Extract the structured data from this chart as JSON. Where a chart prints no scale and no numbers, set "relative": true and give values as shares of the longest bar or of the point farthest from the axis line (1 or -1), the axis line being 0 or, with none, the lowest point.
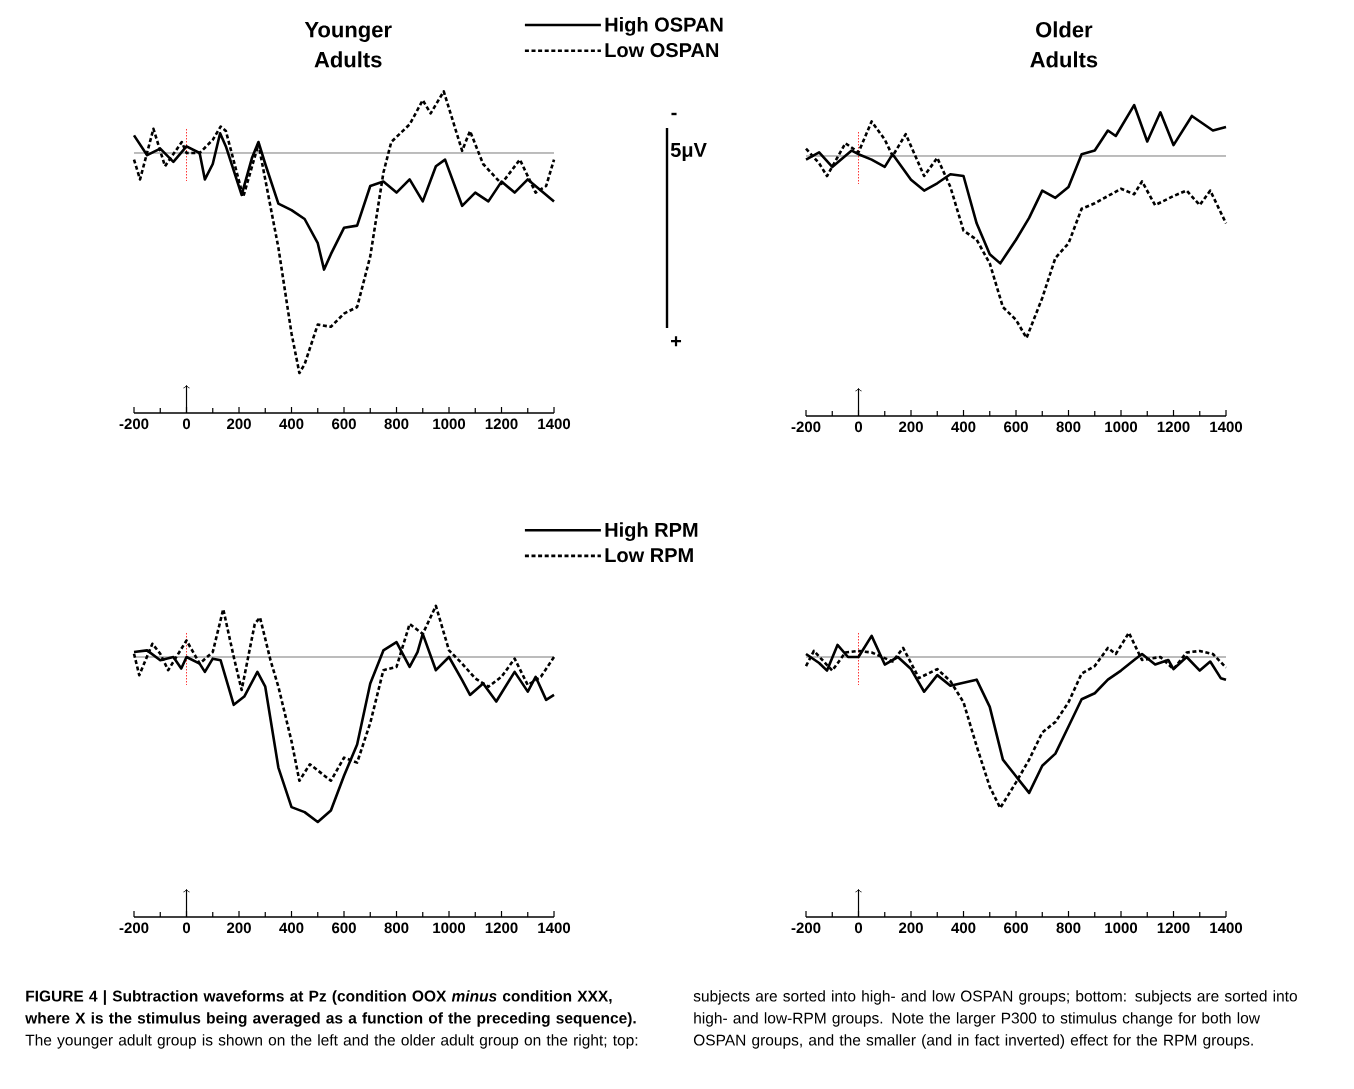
{
  "chart_data": [
    {
      "type": "line",
      "title": "Younger Adults",
      "relative": true,
      "xlim": [
        -200,
        1400
      ],
      "xticks": [
        -200,
        0,
        200,
        400,
        600,
        800,
        1000,
        1200,
        1400
      ],
      "legend": "top right",
      "ref_lines": [
        {
          "axis": "x",
          "value": 0,
          "color": "#ff0000",
          "line_style": "dotted"
        }
      ],
      "series": [
        {
          "name": "High OSPAN",
          "color": "#000000",
          "line_style": "solid",
          "x": [
            -200,
            -150,
            -100,
            -50,
            0,
            50,
            70,
            100,
            128,
            150,
            210,
            250,
            274,
            300,
            350,
            400,
            450,
            500,
            524,
            550,
            600,
            650,
            700,
            750,
            800,
            850,
            900,
            950,
            985,
            1050,
            1100,
            1150,
            1200,
            1250,
            1300,
            1350,
            1400
          ],
          "values": [
            0.08,
            -0.01,
            0.02,
            -0.04,
            0.03,
            0.0,
            -0.12,
            -0.05,
            0.09,
            0.03,
            -0.19,
            -0.02,
            0.05,
            -0.05,
            -0.23,
            -0.26,
            -0.3,
            -0.41,
            -0.53,
            -0.46,
            -0.34,
            -0.33,
            -0.15,
            -0.13,
            -0.18,
            -0.12,
            -0.22,
            -0.06,
            -0.03,
            -0.24,
            -0.18,
            -0.22,
            -0.13,
            -0.18,
            -0.12,
            -0.17,
            -0.22
          ]
        },
        {
          "name": "Low OSPAN",
          "color": "#000000",
          "line_style": "dashed",
          "x": [
            -200,
            -177,
            -126,
            -82,
            -18,
            0,
            50,
            100,
            130,
            150,
            216,
            274,
            300,
            350,
            400,
            430,
            450,
            500,
            550,
            600,
            650,
            700,
            750,
            780,
            850,
            900,
            930,
            980,
            1050,
            1080,
            1130,
            1200,
            1270,
            1330,
            1370,
            1400
          ],
          "values": [
            -0.03,
            -0.12,
            0.11,
            -0.06,
            0.05,
            0.0,
            0.0,
            0.06,
            0.12,
            0.1,
            -0.2,
            0.04,
            -0.12,
            -0.43,
            -0.82,
            -1.0,
            -0.96,
            -0.78,
            -0.79,
            -0.73,
            -0.7,
            -0.47,
            -0.09,
            0.05,
            0.13,
            0.24,
            0.18,
            0.28,
            0.01,
            0.1,
            -0.05,
            -0.14,
            -0.03,
            -0.18,
            -0.15,
            -0.03
          ]
        }
      ]
    },
    {
      "type": "line",
      "title": "Older Adults",
      "relative": true,
      "xlim": [
        -200,
        1400
      ],
      "xticks": [
        -200,
        0,
        200,
        400,
        600,
        800,
        1000,
        1200,
        1400
      ],
      "annotations": [
        "-",
        "5μV",
        "+"
      ],
      "ref_lines": [
        {
          "axis": "x",
          "value": 0,
          "color": "#ff0000",
          "line_style": "dotted"
        }
      ],
      "series": [
        {
          "color": "#000000",
          "line_style": "solid",
          "x": [
            -200,
            -150,
            -100,
            -26,
            0,
            50,
            100,
            130,
            200,
            250,
            300,
            350,
            400,
            450,
            500,
            540,
            600,
            650,
            700,
            750,
            800,
            850,
            900,
            950,
            980,
            1050,
            1100,
            1150,
            1200,
            1270,
            1350,
            1400
          ],
          "values": [
            -0.02,
            0.02,
            -0.06,
            0.03,
            0.01,
            -0.02,
            -0.06,
            0.01,
            -0.13,
            -0.19,
            -0.15,
            -0.1,
            -0.11,
            -0.37,
            -0.54,
            -0.59,
            -0.46,
            -0.34,
            -0.19,
            -0.23,
            -0.17,
            0.01,
            0.03,
            0.14,
            0.11,
            0.28,
            0.08,
            0.24,
            0.06,
            0.22,
            0.14,
            0.16
          ]
        },
        {
          "color": "#000000",
          "line_style": "dashed",
          "x": [
            -200,
            -150,
            -120,
            -50,
            0,
            50,
            100,
            130,
            180,
            250,
            300,
            350,
            400,
            450,
            500,
            550,
            600,
            640,
            700,
            750,
            800,
            850,
            900,
            950,
            1000,
            1050,
            1080,
            1130,
            1200,
            1250,
            1300,
            1340,
            1400
          ],
          "values": [
            0.04,
            -0.04,
            -0.11,
            0.07,
            0.02,
            0.19,
            0.09,
            0.0,
            0.12,
            -0.11,
            -0.01,
            -0.17,
            -0.41,
            -0.46,
            -0.59,
            -0.83,
            -0.9,
            -1.0,
            -0.78,
            -0.56,
            -0.48,
            -0.29,
            -0.26,
            -0.22,
            -0.18,
            -0.21,
            -0.14,
            -0.27,
            -0.22,
            -0.19,
            -0.27,
            -0.19,
            -0.37
          ]
        }
      ]
    },
    {
      "type": "line",
      "relative": true,
      "xlim": [
        -200,
        1400
      ],
      "xticks": [
        -200,
        0,
        200,
        400,
        600,
        800,
        1000,
        1200,
        1400
      ],
      "legend": "top right",
      "ref_lines": [
        {
          "axis": "x",
          "value": 0,
          "color": "#ff0000",
          "line_style": "dotted"
        }
      ],
      "series": [
        {
          "name": "High RPM",
          "color": "#000000",
          "line_style": "solid",
          "x": [
            -200,
            -150,
            -100,
            -50,
            -20,
            0,
            50,
            70,
            100,
            130,
            180,
            220,
            270,
            300,
            350,
            400,
            450,
            500,
            550,
            600,
            650,
            700,
            750,
            800,
            850,
            880,
            900,
            950,
            1000,
            1050,
            1080,
            1130,
            1180,
            1250,
            1300,
            1330,
            1370,
            1400
          ],
          "values": [
            0.03,
            0.04,
            -0.02,
            0.0,
            -0.07,
            0.0,
            -0.04,
            -0.09,
            -0.01,
            -0.02,
            -0.29,
            -0.24,
            -0.09,
            -0.18,
            -0.67,
            -0.91,
            -0.94,
            -1.0,
            -0.93,
            -0.72,
            -0.53,
            -0.16,
            0.04,
            0.09,
            -0.06,
            0.03,
            0.14,
            -0.08,
            0.0,
            -0.14,
            -0.23,
            -0.16,
            -0.27,
            -0.09,
            -0.21,
            -0.12,
            -0.26,
            -0.23
          ]
        },
        {
          "name": "Low RPM",
          "color": "#000000",
          "line_style": "dashed",
          "x": [
            -200,
            -180,
            -130,
            -100,
            -70,
            0,
            50,
            100,
            140,
            180,
            210,
            260,
            280,
            320,
            350,
            400,
            430,
            470,
            510,
            550,
            600,
            650,
            700,
            750,
            800,
            850,
            900,
            950,
            1000,
            1050,
            1100,
            1150,
            1200,
            1250,
            1300,
            1350,
            1400
          ],
          "values": [
            0.02,
            -0.11,
            0.08,
            0.02,
            -0.08,
            0.1,
            -0.04,
            0.03,
            0.29,
            0.0,
            -0.2,
            0.2,
            0.24,
            -0.02,
            -0.18,
            -0.51,
            -0.75,
            -0.65,
            -0.7,
            -0.75,
            -0.61,
            -0.64,
            -0.4,
            -0.08,
            -0.06,
            0.2,
            0.14,
            0.31,
            0.04,
            -0.04,
            -0.13,
            -0.18,
            -0.12,
            -0.01,
            -0.17,
            -0.12,
            0.0
          ]
        }
      ]
    },
    {
      "type": "line",
      "relative": true,
      "xlim": [
        -200,
        1400
      ],
      "xticks": [
        -200,
        0,
        200,
        400,
        600,
        800,
        1000,
        1200,
        1400
      ],
      "annotations": [
        "**FIGURE 4 | Subtraction waveforms at Pz (condition OOX *minus* condition XXX, where X is the stimulus being averaged as a function of the preceding sequence).** The younger adult group is shown on the left and the older adult group on the right; top: subjects are sorted into high- and low OSPAN groups; bottom: subjects are sorted into high- and low-RPM groups. Note the larger P300 to stimulus change for both low OSPAN groups, and the smaller (and in fact inverted) effect for the RPM groups."
      ],
      "ref_lines": [
        {
          "axis": "x",
          "value": 0,
          "color": "#ff0000",
          "line_style": "dotted"
        }
      ],
      "series": [
        {
          "color": "#000000",
          "line_style": "solid",
          "x": [
            -200,
            -150,
            -120,
            -80,
            -40,
            0,
            50,
            100,
            150,
            200,
            250,
            300,
            350,
            400,
            450,
            500,
            550,
            600,
            650,
            700,
            750,
            800,
            850,
            900,
            950,
            1000,
            1050,
            1080,
            1130,
            1180,
            1200,
            1250,
            1300,
            1340,
            1380,
            1400
          ],
          "values": [
            0.02,
            -0.04,
            -0.09,
            0.08,
            0.0,
            0.0,
            0.14,
            -0.05,
            0.0,
            -0.08,
            -0.23,
            -0.12,
            -0.19,
            -0.17,
            -0.15,
            -0.33,
            -0.68,
            -0.79,
            -0.9,
            -0.72,
            -0.64,
            -0.46,
            -0.28,
            -0.24,
            -0.15,
            -0.09,
            -0.02,
            0.02,
            -0.05,
            -0.02,
            -0.08,
            0.0,
            -0.09,
            -0.03,
            -0.14,
            -0.15
          ]
        },
        {
          "color": "#000000",
          "line_style": "dashed",
          "x": [
            -200,
            -170,
            -100,
            -50,
            0,
            50,
            130,
            170,
            230,
            300,
            350,
            400,
            450,
            500,
            540,
            600,
            650,
            700,
            750,
            800,
            850,
            900,
            950,
            980,
            1030,
            1080,
            1150,
            1200,
            1250,
            1300,
            1350,
            1400
          ],
          "values": [
            -0.06,
            0.04,
            -0.09,
            0.03,
            0.04,
            0.03,
            -0.03,
            0.06,
            -0.14,
            -0.08,
            -0.16,
            -0.3,
            -0.59,
            -0.86,
            -1.0,
            -0.83,
            -0.68,
            -0.5,
            -0.43,
            -0.3,
            -0.11,
            -0.06,
            0.06,
            0.02,
            0.16,
            -0.02,
            0.0,
            -0.08,
            0.03,
            0.04,
            0.02,
            -0.07
          ]
        }
      ]
    }
  ]
}
